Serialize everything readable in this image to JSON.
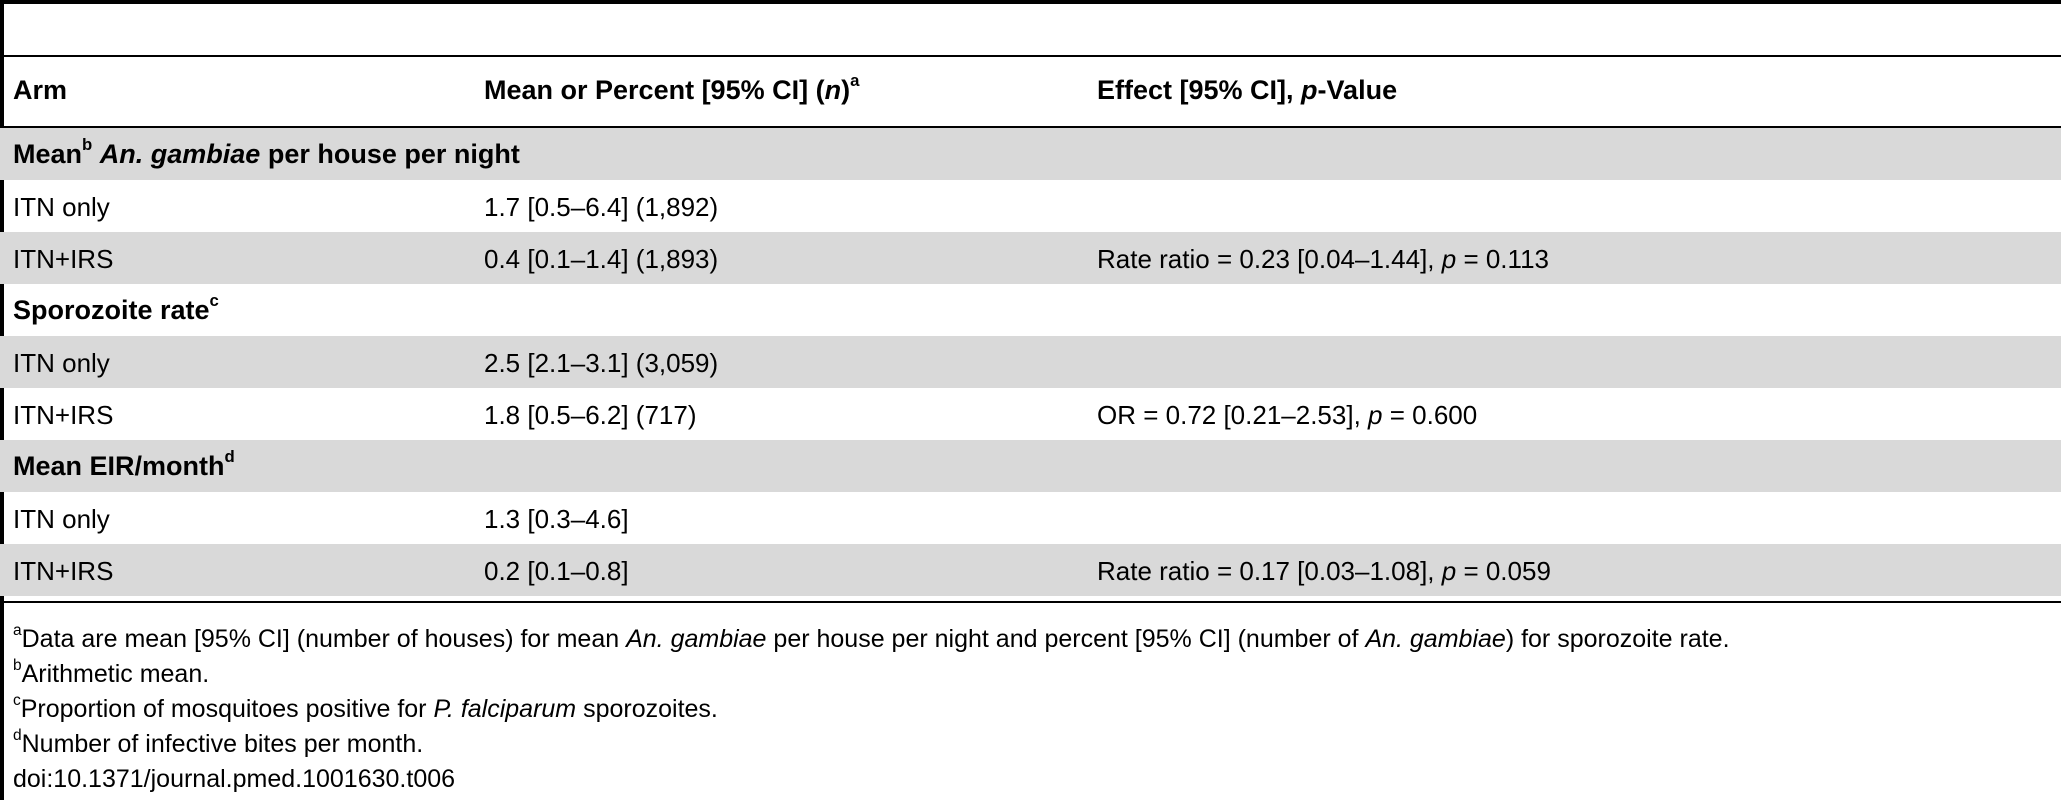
{
  "table": {
    "headers": {
      "arm": "Arm",
      "mean": "Mean or Percent [95% CI] (",
      "mean_n": "n",
      "mean_close": ")",
      "mean_sup": "a",
      "effect_pre": "Effect [95% CI], ",
      "effect_p": "p",
      "effect_post": "-Value"
    },
    "sections": [
      {
        "label_pre": "Mean",
        "label_sup": "b",
        "label_italic": "An. gambiae",
        "label_post": " per house per night",
        "rows": [
          {
            "arm": "ITN only",
            "mean": "1.7 [0.5–6.4] (1,892)",
            "effect_pre": "",
            "effect_p": "",
            "effect_post": ""
          },
          {
            "arm": "ITN+IRS",
            "mean": "0.4 [0.1–1.4] (1,893)",
            "effect_pre": "Rate ratio = 0.23 [0.04–1.44], ",
            "effect_p": "p",
            "effect_post": " = 0.113"
          }
        ]
      },
      {
        "label_pre": "Sporozoite rate",
        "label_sup": "c",
        "label_italic": "",
        "label_post": "",
        "rows": [
          {
            "arm": "ITN only",
            "mean": "2.5 [2.1–3.1] (3,059)",
            "effect_pre": "",
            "effect_p": "",
            "effect_post": ""
          },
          {
            "arm": "ITN+IRS",
            "mean": "1.8 [0.5–6.2] (717)",
            "effect_pre": "OR = 0.72 [0.21–2.53], ",
            "effect_p": "p",
            "effect_post": " = 0.600"
          }
        ]
      },
      {
        "label_pre": "Mean EIR/month",
        "label_sup": "d",
        "label_italic": "",
        "label_post": "",
        "rows": [
          {
            "arm": "ITN only",
            "mean": "1.3 [0.3–4.6]",
            "effect_pre": "",
            "effect_p": "",
            "effect_post": ""
          },
          {
            "arm": "ITN+IRS",
            "mean": "0.2 [0.1–0.8]",
            "effect_pre": "Rate ratio = 0.17 [0.03–1.08], ",
            "effect_p": "p",
            "effect_post": " = 0.059"
          }
        ]
      }
    ]
  },
  "footnotes": {
    "a": {
      "sup": "a",
      "t1": "Data are mean [95% CI] (number of houses) for mean ",
      "i1": "An. gambiae",
      "t2": " per house per night and percent [95% CI] (number of ",
      "i2": "An. gambiae",
      "t3": ") for sporozoite rate."
    },
    "b": {
      "sup": "b",
      "text": "Arithmetic mean."
    },
    "c": {
      "sup": "c",
      "t1": "Proportion of mosquitoes positive for ",
      "i1": "P. falciparum",
      "t2": " sporozoites."
    },
    "d": {
      "sup": "d",
      "text": "Number of infective bites per month."
    },
    "doi": "doi:10.1371/journal.pmed.1001630.t006"
  }
}
